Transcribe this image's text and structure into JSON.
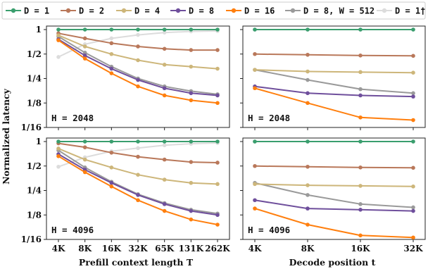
{
  "chart_data": {
    "type": "line",
    "legend": {
      "placement": "top",
      "entries": [
        {
          "label": "D = 1",
          "color": "#3a9e6e"
        },
        {
          "label": "D = 2",
          "color": "#b9785a"
        },
        {
          "label": "D = 4",
          "color": "#cdb67a"
        },
        {
          "label": "D = 8",
          "color": "#6f4f9c"
        },
        {
          "label": "D = 16",
          "color": "#ff7f0e"
        },
        {
          "label": "D = 8, W = 512",
          "color": "#9a9a9a"
        },
        {
          "label": "D = 1†",
          "color": "#dcdcdc"
        }
      ]
    },
    "y_axis": {
      "label": "Normalized latency",
      "scale": "log2",
      "range": [
        0.0625,
        1.0
      ],
      "tick_values": [
        1,
        0.5,
        0.25,
        0.125,
        0.0625
      ],
      "tick_labels": [
        "1",
        "1/2",
        "1/4",
        "1/8",
        "1/16"
      ]
    },
    "panels": [
      {
        "annotation": "H = 2048",
        "x_label": "",
        "categories": [
          "4K",
          "8K",
          "16K",
          "32K",
          "65K",
          "131K",
          "262K"
        ],
        "series": [
          {
            "name": "D = 1",
            "values": [
              1.0,
              1.0,
              1.0,
              1.0,
              1.0,
              1.0,
              1.0
            ]
          },
          {
            "name": "D = 2",
            "values": [
              0.9,
              0.78,
              0.68,
              0.62,
              0.58,
              0.56,
              0.56
            ]
          },
          {
            "name": "D = 4",
            "values": [
              0.85,
              0.62,
              0.5,
              0.42,
              0.37,
              0.35,
              0.33
            ]
          },
          {
            "name": "D = 8",
            "values": [
              0.76,
              0.48,
              0.33,
              0.24,
              0.19,
              0.165,
              0.155
            ]
          },
          {
            "name": "D = 16",
            "values": [
              0.74,
              0.44,
              0.29,
              0.2,
              0.155,
              0.135,
              0.125
            ]
          },
          {
            "name": "D = 8, W = 512",
            "values": [
              0.82,
              0.52,
              0.35,
              0.25,
              0.2,
              0.175,
              0.16
            ]
          },
          {
            "name": "D = 1†",
            "values": [
              0.46,
              0.66,
              0.78,
              0.86,
              0.92,
              0.95,
              0.96
            ]
          }
        ]
      },
      {
        "annotation": "H = 2048",
        "x_label": "",
        "categories": [
          "4K",
          "8K",
          "16K",
          "32K"
        ],
        "series": [
          {
            "name": "D = 1",
            "values": [
              1.0,
              1.0,
              1.0,
              1.0
            ]
          },
          {
            "name": "D = 2",
            "values": [
              0.5,
              0.49,
              0.48,
              0.475
            ]
          },
          {
            "name": "D = 4",
            "values": [
              0.32,
              0.305,
              0.3,
              0.295
            ]
          },
          {
            "name": "D = 8",
            "values": [
              0.2,
              0.165,
              0.155,
              0.15
            ]
          },
          {
            "name": "D = 16",
            "values": [
              0.19,
              0.125,
              0.083,
              0.077
            ]
          },
          {
            "name": "D = 8, W = 512",
            "values": [
              0.32,
              0.24,
              0.185,
              0.165
            ]
          },
          {
            "name": "D = 1†",
            "values": [
              1.0,
              1.0,
              1.0,
              1.0
            ]
          }
        ]
      },
      {
        "annotation": "H = 4096",
        "x_label": "Prefill context length T",
        "categories": [
          "4K",
          "8K",
          "16K",
          "32K",
          "65K",
          "131K",
          "262K"
        ],
        "series": [
          {
            "name": "D = 1",
            "values": [
              1.0,
              1.0,
              1.0,
              1.0,
              1.0,
              1.0,
              1.0
            ]
          },
          {
            "name": "D = 2",
            "values": [
              0.95,
              0.85,
              0.73,
              0.65,
              0.6,
              0.56,
              0.55
            ]
          },
          {
            "name": "D = 4",
            "values": [
              0.82,
              0.6,
              0.48,
              0.39,
              0.34,
              0.31,
              0.3
            ]
          },
          {
            "name": "D = 8",
            "values": [
              0.7,
              0.45,
              0.31,
              0.22,
              0.17,
              0.14,
              0.125
            ]
          },
          {
            "name": "D = 16",
            "values": [
              0.66,
              0.42,
              0.28,
              0.19,
              0.14,
              0.11,
              0.095
            ]
          },
          {
            "name": "D = 8, W = 512",
            "values": [
              0.78,
              0.48,
              0.32,
              0.225,
              0.175,
              0.145,
              0.13
            ]
          },
          {
            "name": "D = 1†",
            "values": [
              0.49,
              0.64,
              0.76,
              0.83,
              0.9,
              0.94,
              0.96
            ]
          }
        ]
      },
      {
        "annotation": "H = 4096",
        "x_label": "Decode position t",
        "categories": [
          "4K",
          "8K",
          "16K",
          "32K"
        ],
        "series": [
          {
            "name": "D = 1",
            "values": [
              1.0,
              1.0,
              1.0,
              1.0
            ]
          },
          {
            "name": "D = 2",
            "values": [
              0.5,
              0.49,
              0.48,
              0.475
            ]
          },
          {
            "name": "D = 4",
            "values": [
              0.3,
              0.29,
              0.285,
              0.28
            ]
          },
          {
            "name": "D = 8",
            "values": [
              0.19,
              0.15,
              0.145,
              0.14
            ]
          },
          {
            "name": "D = 16",
            "values": [
              0.15,
              0.095,
              0.07,
              0.066
            ]
          },
          {
            "name": "D = 8, W = 512",
            "values": [
              0.31,
              0.22,
              0.17,
              0.155
            ]
          },
          {
            "name": "D = 1†",
            "values": [
              1.0,
              1.0,
              1.0,
              1.0
            ]
          }
        ]
      }
    ]
  }
}
